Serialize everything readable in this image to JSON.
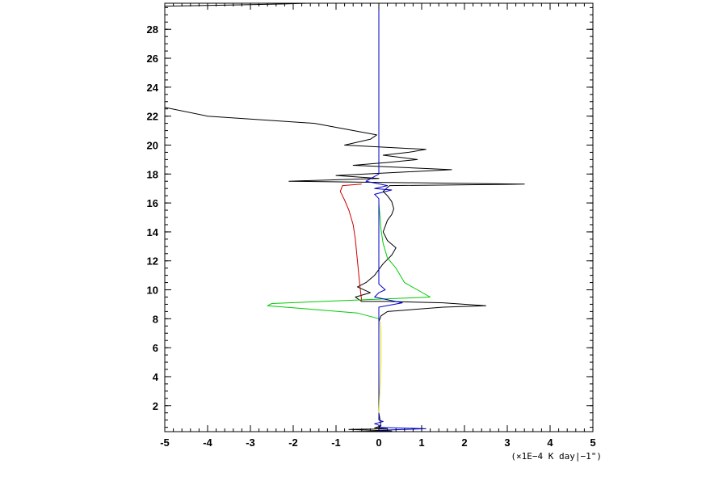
{
  "chart_data": {
    "type": "line",
    "title": "",
    "xlabel": "",
    "ylabel": "",
    "x_unit_label": "(×1E−4 K day|−1\")",
    "xlim": [
      -5,
      5
    ],
    "ylim": [
      0.2,
      29.8
    ],
    "x_ticks": [
      -5,
      -4,
      -3,
      -2,
      -1,
      0,
      1,
      2,
      3,
      4,
      5
    ],
    "x_tick_labels": [
      "-5",
      "-4",
      "-3",
      "-2",
      "-1",
      "0",
      "1",
      "2",
      "3",
      "4",
      "5"
    ],
    "y_ticks": [
      2,
      4,
      6,
      8,
      10,
      12,
      14,
      16,
      18,
      20,
      22,
      24,
      26,
      28
    ],
    "y_tick_labels": [
      "2",
      "4",
      "6",
      "8",
      "10",
      "12",
      "14",
      "16",
      "18",
      "20",
      "22",
      "24",
      "26",
      "28"
    ],
    "grid": false,
    "series": [
      {
        "color": "#000000",
        "points": [
          [
            -0.8,
            0.2
          ],
          [
            0.3,
            0.25
          ],
          [
            -0.7,
            0.35
          ],
          [
            0.2,
            0.4
          ],
          [
            -0.1,
            0.45
          ],
          [
            0.05,
            0.6
          ],
          [
            0.0,
            1.5
          ],
          [
            0.0,
            3.0
          ],
          [
            0.0,
            5.0
          ],
          [
            0.0,
            7.0
          ],
          [
            0.0,
            7.8
          ],
          [
            0.05,
            8.2
          ],
          [
            0.2,
            8.5
          ],
          [
            1.5,
            8.8
          ],
          [
            2.5,
            8.9
          ],
          [
            1.5,
            9.1
          ],
          [
            0.2,
            9.2
          ],
          [
            -0.4,
            9.2
          ],
          [
            -0.55,
            9.5
          ],
          [
            -0.2,
            9.8
          ],
          [
            -0.5,
            10.2
          ],
          [
            -0.3,
            10.5
          ],
          [
            -0.1,
            11.0
          ],
          [
            0.1,
            11.8
          ],
          [
            0.3,
            12.4
          ],
          [
            0.4,
            12.9
          ],
          [
            0.2,
            13.4
          ],
          [
            0.1,
            14.0
          ],
          [
            0.2,
            14.8
          ],
          [
            0.3,
            15.2
          ],
          [
            0.35,
            15.6
          ],
          [
            0.3,
            16.1
          ],
          [
            0.2,
            16.5
          ],
          [
            0.1,
            16.8
          ],
          [
            0.25,
            17.2
          ],
          [
            3.4,
            17.3
          ],
          [
            -2.1,
            17.5
          ],
          [
            0.0,
            17.7
          ],
          [
            -1.0,
            17.9
          ],
          [
            1.7,
            18.3
          ],
          [
            -0.6,
            18.6
          ],
          [
            0.2,
            18.8
          ],
          [
            0.9,
            19.0
          ],
          [
            0.1,
            19.3
          ],
          [
            0.7,
            19.5
          ],
          [
            1.1,
            19.7
          ],
          [
            -0.8,
            20.0
          ],
          [
            -0.5,
            20.2
          ],
          [
            -0.2,
            20.4
          ],
          [
            -0.05,
            20.7
          ],
          [
            -1.5,
            21.5
          ],
          [
            -4.0,
            22.0
          ],
          [
            -5.0,
            22.6
          ]
        ]
      },
      {
        "color": "#000000",
        "points": [
          [
            -5.0,
            29.6
          ],
          [
            -4.0,
            29.65
          ],
          [
            -3.0,
            29.7
          ],
          [
            -2.2,
            29.75
          ],
          [
            -1.6,
            29.8
          ]
        ]
      },
      {
        "color": "#cc0000",
        "points": [
          [
            -0.4,
            9.2
          ],
          [
            -0.45,
            10.5
          ],
          [
            -0.5,
            12.0
          ],
          [
            -0.55,
            13.5
          ],
          [
            -0.6,
            14.5
          ],
          [
            -0.7,
            15.5
          ],
          [
            -0.8,
            16.2
          ],
          [
            -0.9,
            16.8
          ],
          [
            -0.85,
            17.2
          ],
          [
            -0.4,
            17.3
          ]
        ]
      },
      {
        "color": "#00cc00",
        "points": [
          [
            0.0,
            8.0
          ],
          [
            -0.5,
            8.4
          ],
          [
            -2.6,
            8.9
          ],
          [
            -2.5,
            9.05
          ],
          [
            -0.5,
            9.3
          ],
          [
            1.2,
            9.5
          ],
          [
            0.6,
            10.5
          ],
          [
            0.4,
            11.5
          ],
          [
            0.2,
            12.2
          ],
          [
            0.1,
            13.2
          ],
          [
            0.05,
            14.2
          ],
          [
            0.0,
            16.0
          ]
        ]
      },
      {
        "color": "#0000cc",
        "points": [
          [
            0.0,
            29.8
          ],
          [
            0.0,
            18.0
          ],
          [
            -0.3,
            17.5
          ],
          [
            0.2,
            17.2
          ],
          [
            -0.1,
            17.0
          ],
          [
            0.3,
            16.9
          ],
          [
            -0.1,
            16.6
          ],
          [
            0.0,
            16.3
          ],
          [
            0.0,
            10.4
          ],
          [
            0.15,
            10.0
          ],
          [
            0.0,
            9.8
          ],
          [
            -0.1,
            9.5
          ],
          [
            0.55,
            9.1
          ],
          [
            0.0,
            8.8
          ],
          [
            0.0,
            1.0
          ],
          [
            0.1,
            0.9
          ],
          [
            -0.1,
            0.75
          ],
          [
            0.05,
            0.6
          ],
          [
            0.0,
            0.5
          ],
          [
            1.1,
            0.4
          ],
          [
            0.0,
            0.3
          ]
        ]
      },
      {
        "color": "#dddd00",
        "points": [
          [
            0.0,
            1.5
          ],
          [
            0.02,
            3.0
          ],
          [
            0.05,
            5.0
          ],
          [
            0.05,
            7.0
          ],
          [
            0.03,
            7.8
          ]
        ]
      }
    ]
  }
}
